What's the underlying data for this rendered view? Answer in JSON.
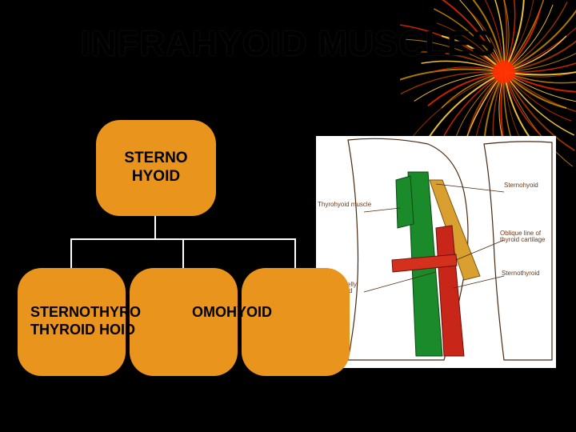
{
  "title": "INFRAHYOID MUSCLES",
  "hierarchy": {
    "root": {
      "label": "STERNO\nHYOID",
      "bg": "#e8941d",
      "fontsize": 19
    },
    "children": [
      {
        "label": "STERNO\nTHYROID",
        "bg": "#e8941d"
      },
      {
        "label": "THYRO\nHOID",
        "bg": "#e8941d"
      },
      {
        "label": "OMOHYOID",
        "bg": "#e8941d"
      }
    ],
    "overlap_label_1": "STERNOTHYRO",
    "overlap_label_2": "THYROID HOID",
    "overlap_label_3": "OMOHYOID"
  },
  "connector_color": "#ffffff",
  "firework": {
    "center_color": "#ff2a00",
    "strand_colors": [
      "#ff5a00",
      "#ffb000",
      "#ff2a00",
      "#ffd040"
    ],
    "strand_count": 60
  },
  "anatomy": {
    "bg": "#ffffff",
    "outline": "#4a2a10",
    "muscles": {
      "sternohyoid": "#1a8a2a",
      "sternothyroid": "#c9261a",
      "omohyoid": "#d9a030",
      "thyrohyoid": "#1a8a2a"
    },
    "labels": {
      "thyrohyoid": "Thyrohyoid muscle",
      "sternohyoid": "Sternohyoid",
      "oblique": "Oblique line of\nthyroid cartilage",
      "sternothyroid": "Sternothyroid",
      "omohyoid": "Superior belly\nof omohyoid"
    }
  },
  "colors": {
    "background": "#000000",
    "text": "#000000"
  }
}
